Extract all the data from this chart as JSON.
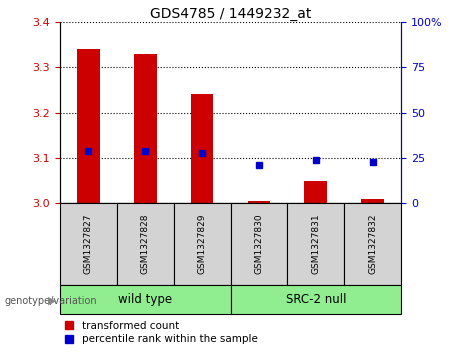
{
  "title": "GDS4785 / 1449232_at",
  "samples": [
    "GSM1327827",
    "GSM1327828",
    "GSM1327829",
    "GSM1327830",
    "GSM1327831",
    "GSM1327832"
  ],
  "red_values": [
    3.34,
    3.33,
    3.24,
    3.005,
    3.05,
    3.01
  ],
  "blue_values": [
    3.115,
    3.115,
    3.11,
    3.085,
    3.095,
    3.092
  ],
  "ylim_left": [
    3.0,
    3.4
  ],
  "yticks_left": [
    3.0,
    3.1,
    3.2,
    3.3,
    3.4
  ],
  "yticks_right": [
    0,
    25,
    50,
    75,
    100
  ],
  "left_color": "#cc0000",
  "right_color": "#0000cc",
  "bar_width": 0.4,
  "blue_marker_size": 5,
  "group_ranges": [
    [
      0,
      3
    ],
    [
      3,
      6
    ]
  ],
  "group_labels": [
    "wild type",
    "SRC-2 null"
  ],
  "group_colors": [
    "#90ee90",
    "#90ee90"
  ],
  "genotype_label": "genotype/variation",
  "legend_red": "transformed count",
  "legend_blue": "percentile rank within the sample",
  "cell_bg": "#d3d3d3",
  "dotted_line_color": "#000000"
}
